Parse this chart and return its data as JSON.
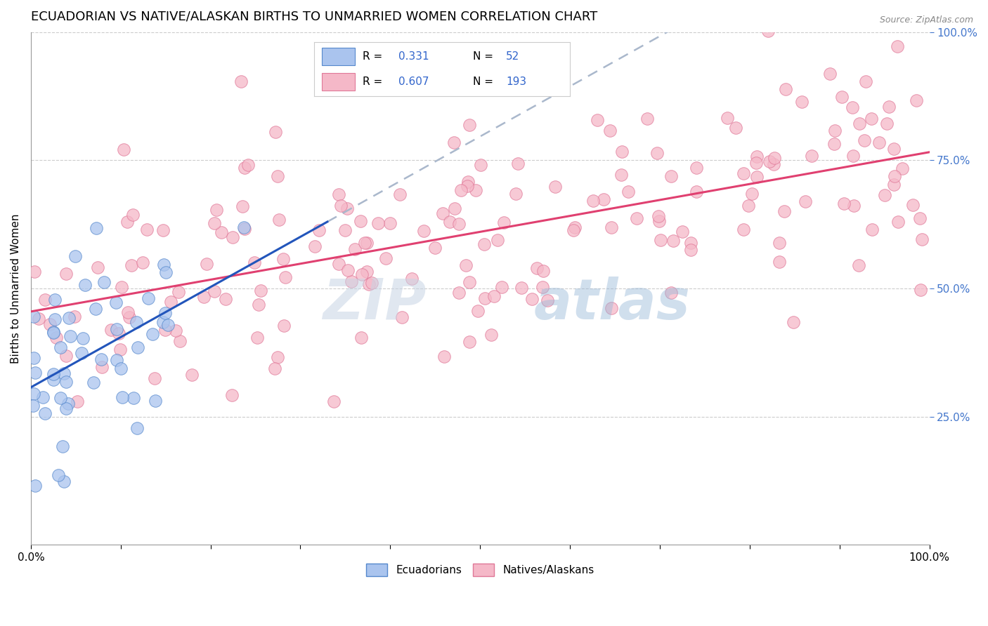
{
  "title": "ECUADORIAN VS NATIVE/ALASKAN BIRTHS TO UNMARRIED WOMEN CORRELATION CHART",
  "source_text": "Source: ZipAtlas.com",
  "ylabel": "Births to Unmarried Women",
  "xlim": [
    0.0,
    1.0
  ],
  "ylim": [
    0.0,
    1.0
  ],
  "ecuadorian_color": "#aac4ee",
  "ecuadorian_edge": "#5588cc",
  "native_color": "#f5b8c8",
  "native_edge": "#e07898",
  "blue_line_color": "#2255bb",
  "pink_line_color": "#e04070",
  "dashed_line_color": "#aab8cc",
  "R_ecu": 0.331,
  "N_ecu": 52,
  "R_nat": 0.607,
  "N_nat": 193,
  "title_fontsize": 13,
  "axis_label_fontsize": 11,
  "tick_fontsize": 11,
  "watermark_color1": "#c8d4e4",
  "watermark_color2": "#98b8d8",
  "background_color": "#ffffff",
  "grid_color": "#cccccc"
}
